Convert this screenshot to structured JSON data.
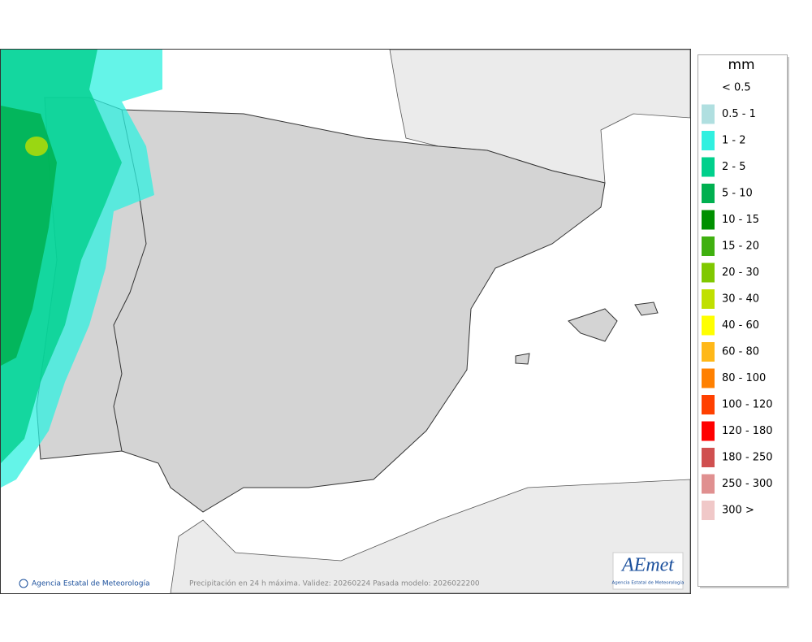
{
  "legend": {
    "title": "mm",
    "items": [
      {
        "label": "< 0.5"
      },
      {
        "label": "0.5 - 1",
        "color": "#b0dfe0"
      },
      {
        "label": "1 - 2",
        "color": "#30f0e0"
      },
      {
        "label": "2 - 5",
        "color": "#00d08c"
      },
      {
        "label": "5 - 10",
        "color": "#00b050"
      },
      {
        "label": "10 - 15",
        "color": "#009000"
      },
      {
        "label": "15 - 20",
        "color": "#40b010"
      },
      {
        "label": "20 - 30",
        "color": "#80c800"
      },
      {
        "label": "30 - 40",
        "color": "#c0e000"
      },
      {
        "label": "40 - 60",
        "color": "#ffff00"
      },
      {
        "label": "60 - 80",
        "color": "#ffb818"
      },
      {
        "label": "80 - 100",
        "color": "#ff8000"
      },
      {
        "label": "100 - 120",
        "color": "#ff4000"
      },
      {
        "label": "120 - 180",
        "color": "#ff0000"
      },
      {
        "label": "180 - 250",
        "color": "#d05050"
      },
      {
        "label": "250 - 300",
        "color": "#e09090"
      },
      {
        "label": "300 >",
        "color": "#f0c8c8"
      }
    ]
  },
  "footer": {
    "credit": "Agencia Estatal de Meteorología",
    "caption": "Precipitación en 24 h máxima. Validez: 20260224 Pasada modelo: 2026022200"
  },
  "logo": {
    "name": "AEmet",
    "subtitle": "Agencia Estatal de Meteorología"
  }
}
